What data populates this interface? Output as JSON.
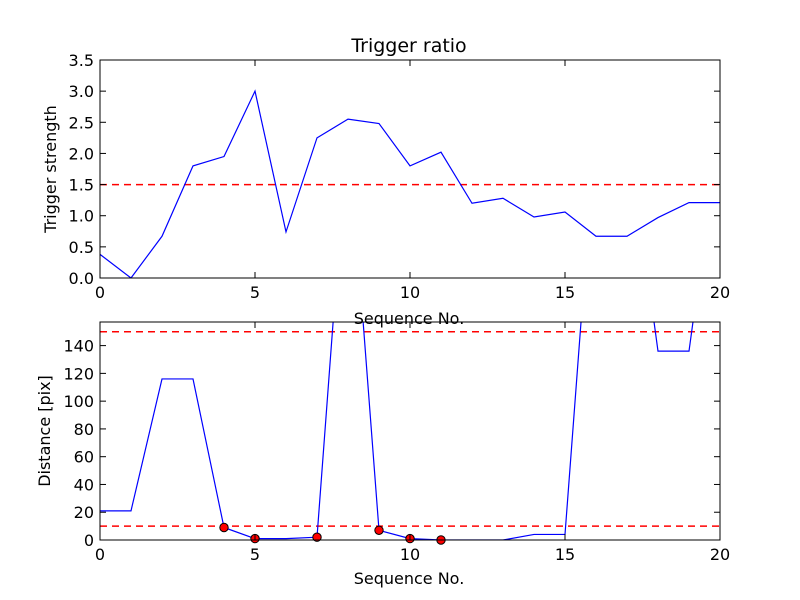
{
  "chart_data": [
    {
      "type": "line",
      "title": "Trigger ratio",
      "xlabel": "Sequence No.",
      "ylabel": "Trigger strength",
      "xlim": [
        0,
        20
      ],
      "ylim": [
        0,
        3.5
      ],
      "xticks": [
        "0",
        "5",
        "10",
        "15",
        "20"
      ],
      "yticks": [
        "0.0",
        "0.5",
        "1.0",
        "1.5",
        "2.0",
        "2.5",
        "3.0",
        "3.5"
      ],
      "series": [
        {
          "color": "#0000ff",
          "x": [
            0,
            1,
            2,
            3,
            4,
            5,
            6,
            7,
            8,
            9,
            10,
            11,
            12,
            13,
            14,
            15,
            16,
            17,
            18,
            19,
            20
          ],
          "values": [
            0.38,
            0.0,
            0.67,
            1.8,
            1.95,
            3.0,
            0.74,
            2.25,
            2.55,
            2.48,
            1.8,
            2.02,
            1.2,
            1.28,
            0.98,
            1.06,
            0.67,
            0.67,
            0.97,
            1.21,
            1.21
          ]
        }
      ],
      "threshold_lines": [
        {
          "y": 1.5,
          "color": "#ff0000",
          "style": "dashed"
        }
      ]
    },
    {
      "type": "line",
      "title": "",
      "xlabel": "Sequence No.",
      "ylabel": "Distance [pix]",
      "xlim": [
        0,
        20
      ],
      "ylim": [
        0,
        157
      ],
      "xticks": [
        "0",
        "5",
        "10",
        "15",
        "20"
      ],
      "yticks": [
        "0",
        "20",
        "40",
        "60",
        "80",
        "100",
        "120",
        "140"
      ],
      "series": [
        {
          "color": "#0000ff",
          "x": [
            0,
            1,
            2,
            3,
            4,
            5,
            6,
            7,
            8,
            9,
            10,
            11,
            12,
            13,
            14,
            15,
            16,
            17,
            18,
            19,
            20
          ],
          "values": [
            21,
            21,
            116,
            116,
            9,
            1,
            1,
            2,
            300,
            7,
            1,
            0,
            0,
            0,
            4,
            4,
            300,
            300,
            136,
            136,
            300
          ]
        }
      ],
      "markers": {
        "color": "#ff0000",
        "x": [
          4,
          5,
          7,
          9,
          10,
          11
        ],
        "values": [
          9,
          1,
          2,
          7,
          1,
          0
        ]
      },
      "threshold_lines": [
        {
          "y": 150,
          "color": "#ff0000",
          "style": "dashed"
        },
        {
          "y": 10,
          "color": "#ff0000",
          "style": "dashed"
        }
      ]
    }
  ]
}
